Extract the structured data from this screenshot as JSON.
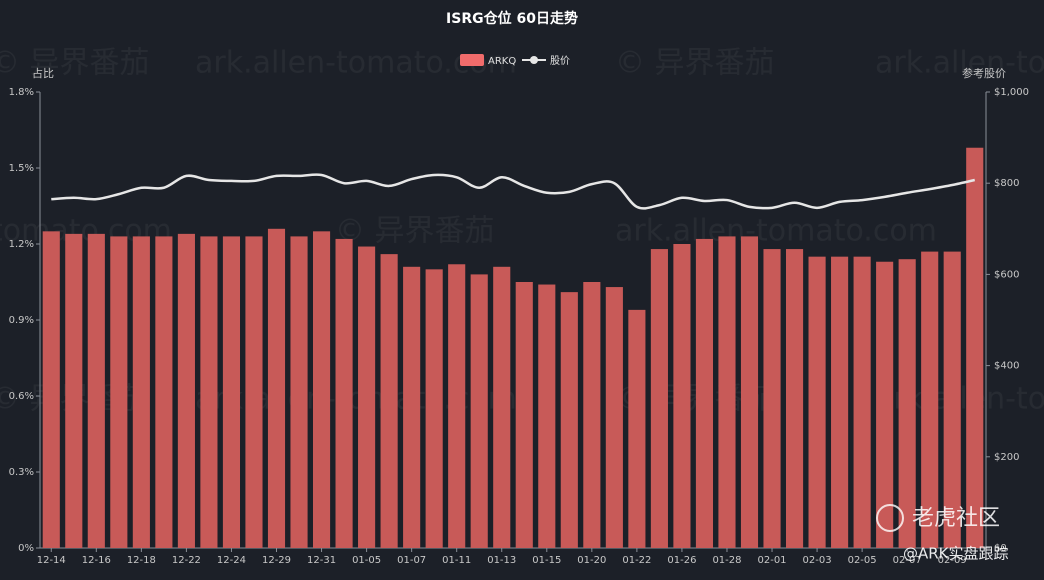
{
  "chart_data": {
    "type": "bar_line",
    "title": "ISRG仓位 60日走势",
    "y_axis_label": "占比",
    "y2_axis_label": "参考股价",
    "categories": [
      "12-14",
      null,
      "12-16",
      null,
      "12-18",
      null,
      "12-22",
      null,
      "12-24",
      null,
      "12-29",
      null,
      "12-31",
      null,
      "01-05",
      null,
      "01-07",
      null,
      "01-11",
      null,
      "01-13",
      null,
      "01-15",
      null,
      "01-20",
      null,
      "01-22",
      null,
      "01-26",
      null,
      "01-28",
      null,
      "02-01",
      null,
      "02-03",
      null,
      "02-05",
      null,
      "02-07",
      null,
      "02-09",
      null
    ],
    "series": [
      {
        "name": "ARKQ",
        "type": "bar",
        "color": "#c85a58",
        "legend_color": "#f06b6b",
        "values": [
          1.25,
          1.24,
          1.24,
          1.23,
          1.23,
          1.23,
          1.24,
          1.23,
          1.23,
          1.23,
          1.26,
          1.23,
          1.25,
          1.22,
          1.19,
          1.16,
          1.11,
          1.1,
          1.12,
          1.08,
          1.11,
          1.05,
          1.04,
          1.01,
          1.05,
          1.03,
          0.94,
          1.18,
          1.2,
          1.22,
          1.23,
          1.23,
          1.18,
          1.18,
          1.15,
          1.15,
          1.15,
          1.13,
          1.14,
          1.17,
          1.17,
          1.58
        ]
      },
      {
        "name": "股价",
        "type": "line",
        "axis": "y2",
        "color": "#e6e6e6",
        "values": [
          765,
          768,
          765,
          776,
          790,
          790,
          816,
          807,
          805,
          805,
          816,
          816,
          818,
          800,
          805,
          794,
          809,
          818,
          813,
          790,
          813,
          794,
          779,
          781,
          798,
          800,
          748,
          752,
          768,
          761,
          763,
          748,
          746,
          757,
          746,
          759,
          763,
          770,
          779,
          787,
          796,
          807
        ]
      }
    ],
    "ylim": [
      0,
      1.8
    ],
    "yticks": [
      {
        "value": 0,
        "label": "0%"
      },
      {
        "value": 0.3,
        "label": "0.3%"
      },
      {
        "value": 0.6,
        "label": "0.6%"
      },
      {
        "value": 0.9,
        "label": "0.9%"
      },
      {
        "value": 1.2,
        "label": "1.2%"
      },
      {
        "value": 1.5,
        "label": "1.5%"
      },
      {
        "value": 1.8,
        "label": "1.8%"
      }
    ],
    "y2lim": [
      0,
      1000
    ],
    "y2ticks": [
      {
        "value": 0,
        "label": "$0"
      },
      {
        "value": 200,
        "label": "$200"
      },
      {
        "value": 400,
        "label": "$400"
      },
      {
        "value": 600,
        "label": "$600"
      },
      {
        "value": 800,
        "label": "$800"
      },
      {
        "value": 1000,
        "label": "$1,000"
      }
    ],
    "legend": "top",
    "watermarks": [
      "© 异界番茄",
      "ark.allen-tomato.com"
    ],
    "brand": "老虎社区",
    "handle": "@ARK实盘跟踪"
  }
}
